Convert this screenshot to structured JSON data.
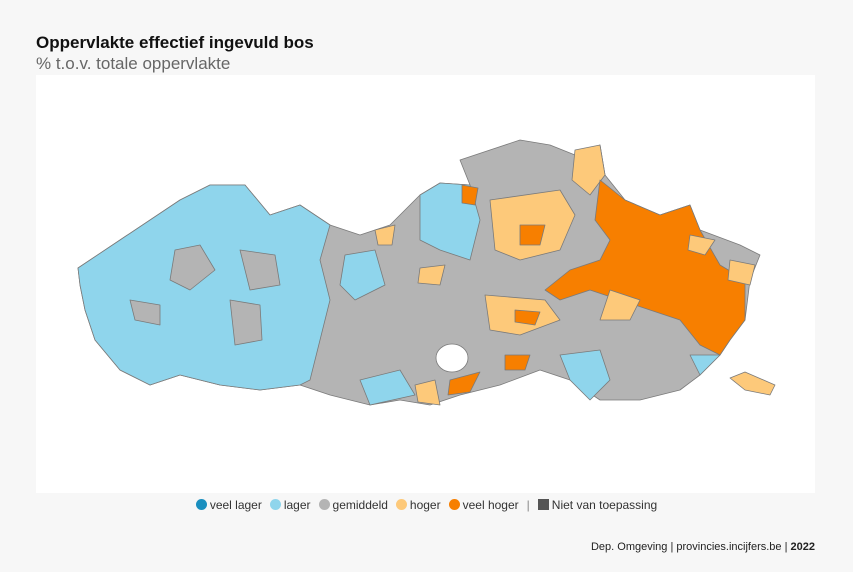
{
  "header": {
    "title": "Oppervlakte effectief ingevuld bos",
    "subtitle": "% t.o.v. totale oppervlakte"
  },
  "legend": {
    "items": [
      {
        "label": "veel lager",
        "color": "#1a8fbf"
      },
      {
        "label": "lager",
        "color": "#8fd5ec"
      },
      {
        "label": "gemiddeld",
        "color": "#b4b4b4"
      },
      {
        "label": "hoger",
        "color": "#fdc97a"
      },
      {
        "label": "veel hoger",
        "color": "#f77f00"
      }
    ],
    "separator": "|",
    "na": {
      "label": "Niet van toepassing",
      "color": "#555555"
    }
  },
  "footer": {
    "source": "Dep. Omgeving | provincies.incijfers.be |",
    "year": "2022"
  }
}
